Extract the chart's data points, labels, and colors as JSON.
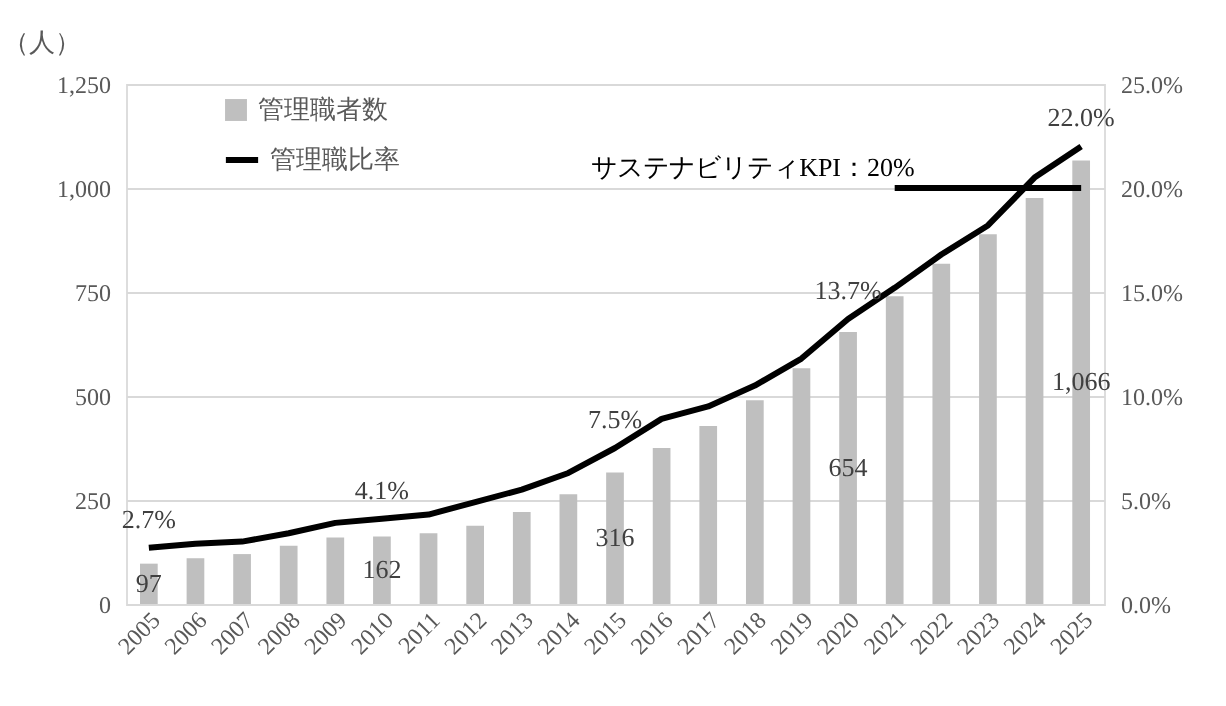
{
  "chart_data": {
    "type": "bar",
    "ylabel": "（人）",
    "categories": [
      "2005",
      "2006",
      "2007",
      "2008",
      "2009",
      "2010",
      "2011",
      "2012",
      "2013",
      "2014",
      "2015",
      "2016",
      "2017",
      "2018",
      "2019",
      "2020",
      "2021",
      "2022",
      "2023",
      "2024",
      "2025"
    ],
    "series": [
      {
        "name": "管理職者数",
        "color": "#bfbfbf",
        "values": [
          97,
          110,
          120,
          140,
          160,
          162,
          170,
          188,
          221,
          264,
          316,
          375,
          428,
          490,
          567,
          654,
          740,
          818,
          889,
          976,
          1066
        ],
        "value_labels": [
          "97",
          null,
          null,
          null,
          null,
          "162",
          null,
          null,
          null,
          null,
          "316",
          null,
          null,
          null,
          null,
          "654",
          null,
          null,
          null,
          null,
          "1,066"
        ]
      },
      {
        "name": "管理職比率",
        "type": "line",
        "axis": "y2",
        "color": "#000000",
        "values": [
          2.7,
          2.9,
          3.0,
          3.4,
          3.9,
          4.1,
          4.3,
          4.9,
          5.5,
          6.3,
          7.5,
          8.9,
          9.5,
          10.5,
          11.8,
          13.7,
          15.2,
          16.8,
          18.2,
          20.5,
          22.0
        ],
        "value_labels": [
          "2.7%",
          null,
          null,
          null,
          null,
          "4.1%",
          null,
          null,
          null,
          null,
          "7.5%",
          null,
          null,
          null,
          null,
          "13.7%",
          null,
          null,
          null,
          null,
          "22.0%"
        ]
      }
    ],
    "ylim": [
      0,
      1250
    ],
    "yticks": [
      0,
      250,
      500,
      750,
      {
        "value": 1000,
        "label": "1,000"
      },
      {
        "value": 1250,
        "label": "1,250"
      }
    ],
    "y2lim": [
      0,
      25
    ],
    "y2ticks": [
      {
        "value": 0,
        "label": "0.0%"
      },
      {
        "value": 5,
        "label": "5.0%"
      },
      {
        "value": 10,
        "label": "10.0%"
      },
      {
        "value": 15,
        "label": "15.0%"
      },
      {
        "value": 20,
        "label": "20.0%"
      },
      {
        "value": 25,
        "label": "25.0%"
      }
    ],
    "ref_lines": [
      {
        "axis": "y2",
        "value": 20,
        "label": "サステナビリティKPI：20%",
        "color": "#000000"
      }
    ],
    "grid": "y",
    "legend": "top left",
    "marker": "none",
    "line_style": "solid"
  }
}
